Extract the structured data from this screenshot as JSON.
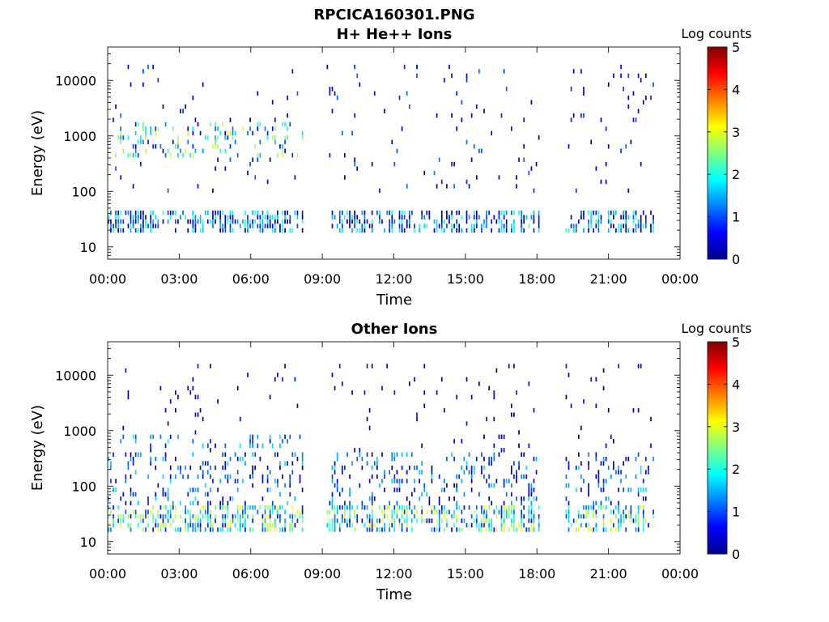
{
  "figure": {
    "title": "RPCICA160301.PNG",
    "time_axis_label": "Time",
    "energy_axis_label": "Energy (eV)",
    "colorbar_label": "Log counts",
    "colorbar_ticks": [
      "0",
      "1",
      "2",
      "3",
      "4",
      "5"
    ],
    "x_ticks": [
      "00:00",
      "03:00",
      "06:00",
      "09:00",
      "12:00",
      "15:00",
      "18:00",
      "21:00",
      "00:00"
    ],
    "y_ticks": [
      "10",
      "100",
      "1000",
      "10000"
    ]
  },
  "chart_data": [
    {
      "type": "heatmap",
      "title": "H+ He++ Ions",
      "xlabel": "Time",
      "ylabel": "Energy (eV)",
      "x_range_hours": [
        0,
        24
      ],
      "y_range_eV": [
        6,
        40000
      ],
      "y_scale": "log",
      "colorbar": {
        "label": "Log counts",
        "range": [
          0,
          5
        ],
        "colormap": "jet"
      },
      "data_gaps_hours": [
        [
          8.2,
          9.2
        ],
        [
          18.2,
          19.2
        ]
      ],
      "data_end_hours": 23.0,
      "bands": [
        {
          "energy_eV": [
            18,
            45
          ],
          "intensity_log": [
            0,
            2.2
          ],
          "density": "high"
        },
        {
          "energy_eV": [
            400,
            1800
          ],
          "intensity_log": [
            0.5,
            3.0
          ],
          "density": "medium",
          "hours": [
            0.3,
            8.2
          ]
        },
        {
          "energy_eV": [
            100,
            20000
          ],
          "intensity_log": [
            0,
            1.2
          ],
          "density": "sparse"
        }
      ]
    },
    {
      "type": "heatmap",
      "title": "Other Ions",
      "xlabel": "Time",
      "ylabel": "Energy (eV)",
      "x_range_hours": [
        0,
        24
      ],
      "y_range_eV": [
        6,
        40000
      ],
      "y_scale": "log",
      "colorbar": {
        "label": "Log counts",
        "range": [
          0,
          5
        ],
        "colormap": "jet"
      },
      "data_gaps_hours": [
        [
          8.2,
          9.2
        ],
        [
          18.2,
          19.2
        ]
      ],
      "data_end_hours": 23.0,
      "bands": [
        {
          "energy_eV": [
            15,
            45
          ],
          "intensity_log": [
            0.5,
            3.2
          ],
          "density": "high"
        },
        {
          "energy_eV": [
            45,
            400
          ],
          "intensity_log": [
            0,
            1.8
          ],
          "density": "medium"
        },
        {
          "energy_eV": [
            500,
            900
          ],
          "intensity_log": [
            0.5,
            2.0
          ],
          "density": "medium",
          "hours": [
            0.5,
            8.2
          ]
        },
        {
          "energy_eV": [
            400,
            15000
          ],
          "intensity_log": [
            0,
            0.8
          ],
          "density": "sparse"
        }
      ]
    }
  ]
}
